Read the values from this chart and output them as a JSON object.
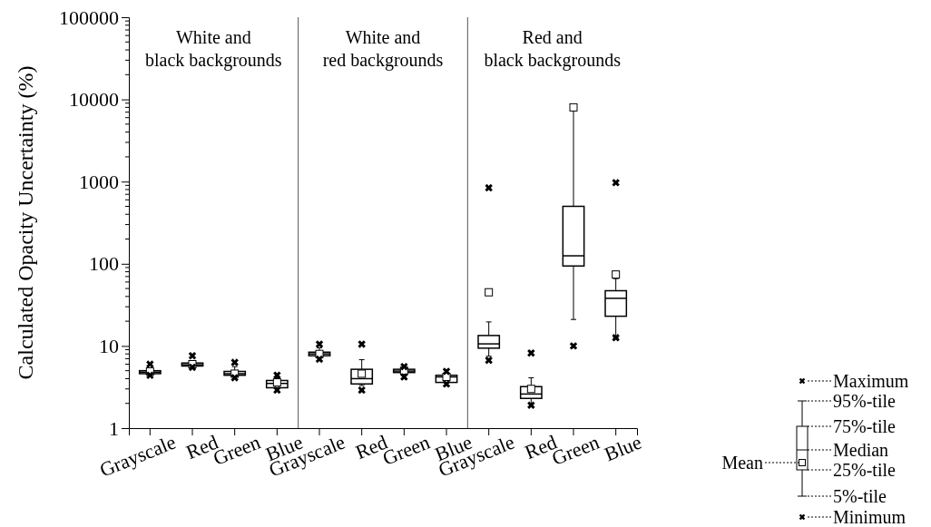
{
  "chart_data": {
    "type": "box",
    "ylabel": "Calculated Opacity Uncertainty (%)",
    "log": true,
    "ylim": [
      1,
      100000
    ],
    "yticks": [
      1,
      10,
      100,
      1000,
      10000,
      100000
    ],
    "color": "#000000",
    "marker": "cross",
    "categories": [
      "Grayscale",
      "Red",
      "Green",
      "Blue",
      "Grayscale",
      "Red",
      "Green",
      "Blue",
      "Grayscale",
      "Red",
      "Green",
      "Blue"
    ],
    "boxes": [
      {
        "low": 4.5,
        "q1": 4.6,
        "median": 4.8,
        "q3": 5.0,
        "high": 5.1,
        "mean": 4.9,
        "outliers": [
          6.0,
          4.4
        ]
      },
      {
        "low": 5.6,
        "q1": 5.7,
        "median": 5.9,
        "q3": 6.2,
        "high": 6.4,
        "mean": 6.0,
        "outliers": [
          7.6,
          5.5
        ]
      },
      {
        "low": 4.3,
        "q1": 4.4,
        "median": 4.6,
        "q3": 4.9,
        "high": 5.6,
        "mean": 4.6,
        "outliers": [
          6.3,
          4.1
        ]
      },
      {
        "low": 3.05,
        "q1": 3.1,
        "median": 3.5,
        "q3": 3.8,
        "high": 4.1,
        "mean": 3.6,
        "outliers": [
          4.4,
          2.9
        ]
      },
      {
        "low": 7.2,
        "q1": 7.6,
        "median": 8.0,
        "q3": 8.4,
        "high": 9.5,
        "mean": 8.0,
        "outliers": [
          10.5,
          6.9
        ]
      },
      {
        "low": 3.3,
        "q1": 3.45,
        "median": 4.0,
        "q3": 5.2,
        "high": 6.8,
        "mean": 4.6,
        "outliers": [
          10.5,
          2.9
        ]
      },
      {
        "low": 4.5,
        "q1": 4.75,
        "median": 4.95,
        "q3": 5.2,
        "high": 5.4,
        "mean": 5.0,
        "outliers": [
          5.6,
          4.2
        ]
      },
      {
        "low": 3.55,
        "q1": 3.6,
        "median": 4.2,
        "q3": 4.4,
        "high": 4.6,
        "mean": 4.2,
        "outliers": [
          4.9,
          3.45
        ]
      },
      {
        "low": 7.5,
        "q1": 9.4,
        "median": 10.6,
        "q3": 13.4,
        "high": 19.6,
        "mean": 45,
        "outliers": [
          840,
          6.7
        ]
      },
      {
        "low": 2.0,
        "q1": 2.3,
        "median": 2.6,
        "q3": 3.2,
        "high": 4.1,
        "mean": 3.0,
        "outliers": [
          8.2,
          1.9
        ]
      },
      {
        "low": 21,
        "q1": 94,
        "median": 125,
        "q3": 500,
        "high": 8000,
        "mean": 8000,
        "outliers": [
          10
        ]
      },
      {
        "low": 12.6,
        "q1": 23,
        "median": 38,
        "q3": 47,
        "high": 66,
        "mean": 74,
        "outliers": [
          970,
          12.6
        ]
      }
    ],
    "annotations": [
      "White and\nblack backgrounds",
      "White and\nred backgrounds",
      "Red and\nblack backgrounds",
      "Maximum",
      "95%-tile",
      "75%-tile",
      "Median",
      "25%-tile",
      "5%-tile",
      "Minimum",
      "Mean"
    ]
  }
}
